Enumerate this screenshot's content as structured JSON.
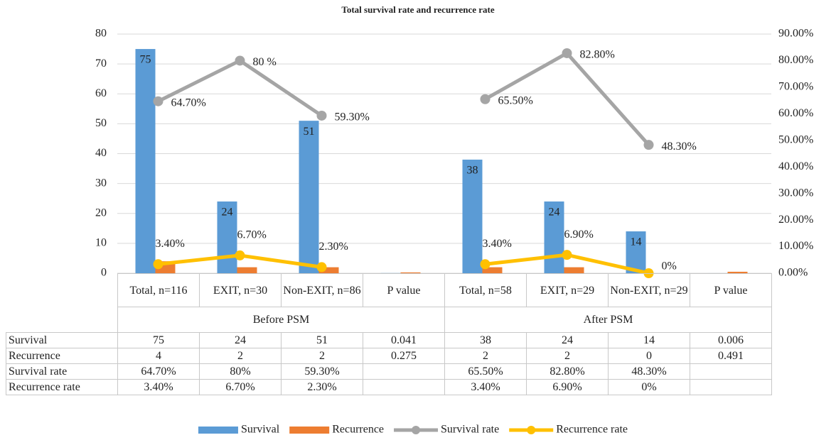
{
  "chart_data": {
    "type": "bar",
    "title": "Total survival rate and recurrence rate",
    "categories": [
      "Total, n=116",
      "EXIT, n=30",
      "Non-EXIT, n=86",
      "P value",
      "Total, n=58",
      "EXIT, n=29",
      "Non-EXIT, n=29",
      "P value"
    ],
    "groups": [
      {
        "label": "Before PSM",
        "span": 4
      },
      {
        "label": "After PSM",
        "span": 4
      }
    ],
    "series": [
      {
        "name": "Survival",
        "type": "bar",
        "color": "#5b9bd5",
        "values": [
          75,
          24,
          51,
          0.041,
          38,
          24,
          14,
          0.006
        ],
        "value_labels": [
          "75",
          "24",
          "51",
          null,
          "38",
          "24",
          "14",
          null
        ]
      },
      {
        "name": "Recurrence",
        "type": "bar",
        "color": "#ed7d31",
        "values": [
          4,
          2,
          2,
          0.275,
          2,
          2,
          0,
          0.491
        ]
      },
      {
        "name": "Survival rate",
        "type": "line",
        "axis": "y2",
        "color": "#a5a5a5",
        "values": [
          64.7,
          80,
          59.3,
          null,
          65.5,
          82.8,
          48.3,
          null
        ],
        "value_labels": [
          "64.70%",
          "80 %",
          "59.30%",
          null,
          "65.50%",
          "82.80%",
          "48.30%",
          null
        ],
        "table_labels": [
          "64.70%",
          "80%",
          "59.30%",
          null,
          "65.50%",
          "82.80%",
          "48.30%",
          null
        ]
      },
      {
        "name": "Recurrence rate",
        "type": "line",
        "axis": "y2",
        "color": "#ffc000",
        "values": [
          3.4,
          6.7,
          2.3,
          null,
          3.4,
          6.9,
          0,
          null
        ],
        "value_labels": [
          "3.40%",
          "6.70%",
          "2.30%",
          null,
          "3.40%",
          "6.90%",
          "0%",
          null
        ],
        "table_labels": [
          "3.40%",
          "6.70%",
          "2.30%",
          null,
          "3.40%",
          "6.90%",
          "0%",
          null
        ]
      }
    ],
    "ylim": [
      0,
      80
    ],
    "yticks": [
      0,
      10,
      20,
      30,
      40,
      50,
      60,
      70,
      80
    ],
    "y2lim": [
      0,
      90
    ],
    "y2ticks": [
      {
        "value": 0,
        "label": "0.00%"
      },
      {
        "value": 10,
        "label": "10.00%"
      },
      {
        "value": 20,
        "label": "20.00%"
      },
      {
        "value": 30,
        "label": "30.00%"
      },
      {
        "value": 40,
        "label": "40.00%"
      },
      {
        "value": 50,
        "label": "50.00%"
      },
      {
        "value": 60,
        "label": "60.00%"
      },
      {
        "value": 70,
        "label": "70.00%"
      },
      {
        "value": 80,
        "label": "80.00%"
      },
      {
        "value": 90,
        "label": "90.00%"
      }
    ],
    "grid": true,
    "legend": "bottom"
  }
}
